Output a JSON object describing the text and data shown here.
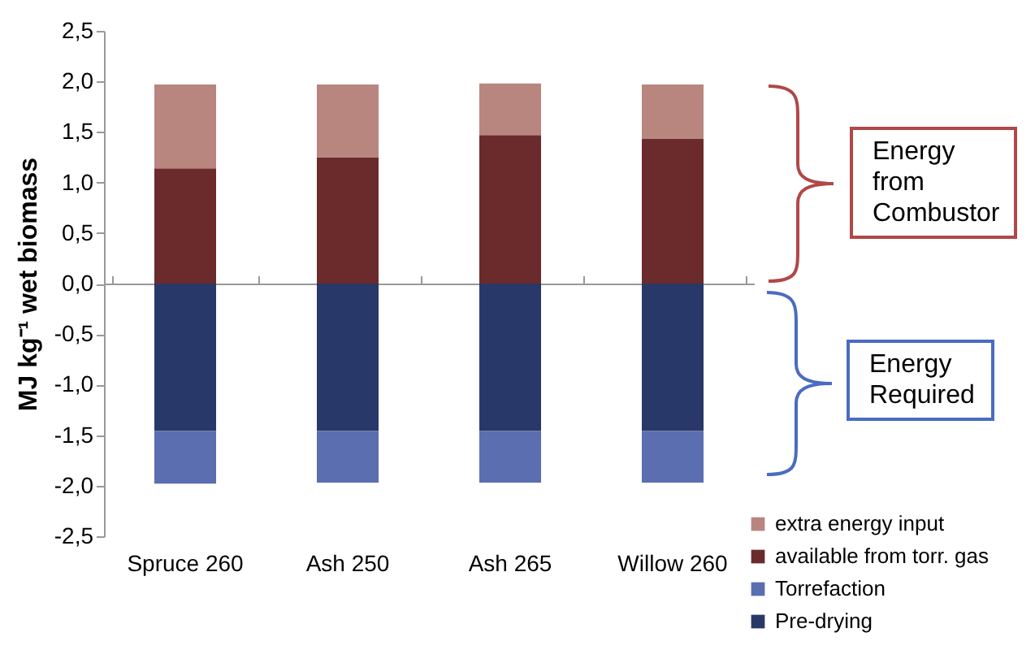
{
  "chart_data": {
    "type": "bar",
    "stacked": true,
    "ylabel": "MJ kg⁻¹ wet biomass",
    "categories": [
      "Spruce 260",
      "Ash 250",
      "Ash 265",
      "Willow 260"
    ],
    "series": [
      {
        "name": "Pre-drying",
        "color": "#283868",
        "values": [
          -1.46,
          -1.46,
          -1.46,
          -1.46
        ]
      },
      {
        "name": "Torrefaction",
        "color": "#5a6eb0",
        "values": [
          -0.52,
          -0.51,
          -0.51,
          -0.51
        ]
      },
      {
        "name": "available from torr. gas",
        "color": "#6b2a2b",
        "values": [
          1.14,
          1.25,
          1.47,
          1.43
        ]
      },
      {
        "name": "extra energy input",
        "color": "#b8857f",
        "values": [
          0.83,
          0.72,
          0.51,
          0.54
        ]
      }
    ],
    "ylim": [
      -2.5,
      2.5
    ],
    "yticks": [
      {
        "value": -2.5,
        "label": "-2,5"
      },
      {
        "value": -2,
        "label": "-2,0"
      },
      {
        "value": -1.5,
        "label": "-1,5"
      },
      {
        "value": -1,
        "label": "-1,0"
      },
      {
        "value": -0.5,
        "label": "-0,5"
      },
      {
        "value": 0,
        "label": "0,0"
      },
      {
        "value": 0.5,
        "label": "0,5"
      },
      {
        "value": 1,
        "label": "1,0"
      },
      {
        "value": 1.5,
        "label": "1,5"
      },
      {
        "value": 2,
        "label": "2,0"
      },
      {
        "value": 2.5,
        "label": "2,5"
      }
    ],
    "legend": "bottom right",
    "annotations": [
      "Energy from Combustor",
      "Energy Required"
    ]
  }
}
